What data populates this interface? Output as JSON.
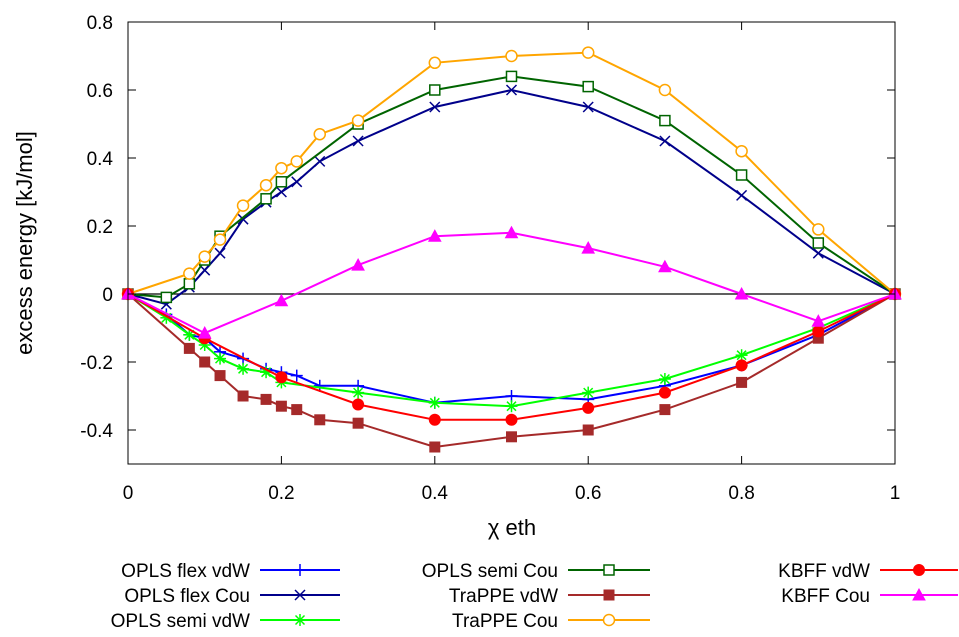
{
  "chart_data": {
    "type": "line",
    "xlabel": "χ eth",
    "ylabel": "excess energy [kJ/mol]",
    "xlim": [
      0,
      1
    ],
    "ylim": [
      -0.5,
      0.8
    ],
    "xticks": [
      0,
      0.2,
      0.4,
      0.6,
      0.8,
      1
    ],
    "xtick_labels": [
      "0",
      "0.2",
      "0.4",
      "0.6",
      "0.8",
      "1"
    ],
    "yticks": [
      -0.4,
      -0.2,
      0,
      0.2,
      0.4,
      0.6,
      0.8
    ],
    "ytick_labels": [
      "-0.4",
      "-0.2",
      "0",
      "0.2",
      "0.4",
      "0.6",
      "0.8"
    ],
    "grid": false,
    "zero_line": true,
    "legend_position": "bottom",
    "series": [
      {
        "name": "OPLS flex vdW",
        "color": "#0000ff",
        "marker": "plus",
        "x": [
          0,
          0.05,
          0.08,
          0.1,
          0.12,
          0.15,
          0.18,
          0.2,
          0.22,
          0.25,
          0.3,
          0.4,
          0.5,
          0.6,
          0.7,
          0.8,
          0.9,
          1
        ],
        "y": [
          0,
          -0.06,
          -0.12,
          -0.13,
          -0.17,
          -0.19,
          -0.22,
          -0.23,
          -0.24,
          -0.27,
          -0.27,
          -0.32,
          -0.3,
          -0.31,
          -0.27,
          -0.21,
          -0.12,
          0
        ]
      },
      {
        "name": "OPLS flex Cou",
        "color": "#00008b",
        "marker": "x",
        "x": [
          0,
          0.05,
          0.08,
          0.1,
          0.12,
          0.15,
          0.18,
          0.2,
          0.22,
          0.25,
          0.3,
          0.4,
          0.5,
          0.6,
          0.7,
          0.8,
          0.9,
          1
        ],
        "y": [
          0,
          -0.03,
          0.02,
          0.07,
          0.12,
          0.22,
          0.27,
          0.3,
          0.33,
          0.39,
          0.45,
          0.55,
          0.6,
          0.55,
          0.45,
          0.29,
          0.12,
          0
        ]
      },
      {
        "name": "OPLS semi vdW",
        "color": "#00ff00",
        "marker": "star",
        "x": [
          0,
          0.05,
          0.08,
          0.1,
          0.12,
          0.15,
          0.18,
          0.2,
          0.3,
          0.4,
          0.5,
          0.6,
          0.7,
          0.8,
          0.9,
          1
        ],
        "y": [
          0,
          -0.07,
          -0.12,
          -0.15,
          -0.19,
          -0.22,
          -0.23,
          -0.26,
          -0.29,
          -0.32,
          -0.33,
          -0.29,
          -0.25,
          -0.18,
          -0.1,
          0
        ]
      },
      {
        "name": "OPLS semi Cou",
        "color": "#006400",
        "marker": "square-open",
        "x": [
          0,
          0.05,
          0.08,
          0.1,
          0.12,
          0.18,
          0.2,
          0.3,
          0.4,
          0.5,
          0.6,
          0.7,
          0.8,
          0.9,
          1
        ],
        "y": [
          0,
          -0.01,
          0.03,
          0.1,
          0.17,
          0.28,
          0.33,
          0.5,
          0.6,
          0.64,
          0.61,
          0.51,
          0.35,
          0.15,
          0
        ]
      },
      {
        "name": "TraPPE vdW",
        "color": "#a52a2a",
        "marker": "square-filled",
        "x": [
          0,
          0.08,
          0.1,
          0.12,
          0.15,
          0.18,
          0.2,
          0.22,
          0.25,
          0.3,
          0.4,
          0.5,
          0.6,
          0.7,
          0.8,
          0.9,
          1
        ],
        "y": [
          0,
          -0.16,
          -0.2,
          -0.24,
          -0.3,
          -0.31,
          -0.33,
          -0.34,
          -0.37,
          -0.38,
          -0.45,
          -0.42,
          -0.4,
          -0.34,
          -0.26,
          -0.13,
          0
        ]
      },
      {
        "name": "TraPPE Cou",
        "color": "#ffa500",
        "marker": "circle-open",
        "x": [
          0,
          0.08,
          0.1,
          0.12,
          0.15,
          0.18,
          0.2,
          0.22,
          0.25,
          0.3,
          0.4,
          0.5,
          0.6,
          0.7,
          0.8,
          0.9,
          1
        ],
        "y": [
          0,
          0.06,
          0.11,
          0.16,
          0.26,
          0.32,
          0.37,
          0.39,
          0.47,
          0.51,
          0.68,
          0.7,
          0.71,
          0.6,
          0.42,
          0.19,
          0
        ]
      },
      {
        "name": "KBFF vdW",
        "color": "#ff0000",
        "marker": "circle-filled",
        "x": [
          0,
          0.1,
          0.2,
          0.3,
          0.4,
          0.5,
          0.6,
          0.7,
          0.8,
          0.9,
          1
        ],
        "y": [
          0,
          -0.13,
          -0.245,
          -0.325,
          -0.37,
          -0.37,
          -0.335,
          -0.29,
          -0.21,
          -0.11,
          0
        ]
      },
      {
        "name": "KBFF Cou",
        "color": "#ff00ff",
        "marker": "triangle-filled",
        "x": [
          0,
          0.1,
          0.2,
          0.3,
          0.4,
          0.5,
          0.6,
          0.7,
          0.8,
          0.9,
          1
        ],
        "y": [
          0,
          -0.115,
          -0.02,
          0.085,
          0.17,
          0.18,
          0.135,
          0.08,
          0.0,
          -0.08,
          0
        ]
      }
    ]
  }
}
